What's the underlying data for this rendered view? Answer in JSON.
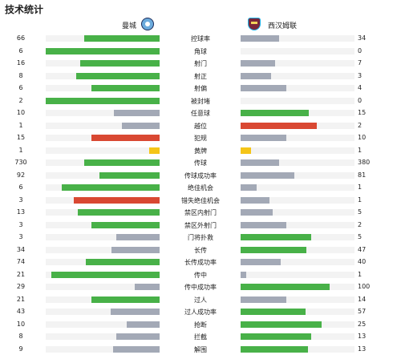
{
  "title": "技术统计",
  "teams": {
    "home": "曼城",
    "away": "西汉姆联",
    "home_badge_icon": "man-city-badge-icon",
    "away_badge_icon": "west-ham-badge-icon"
  },
  "colors": {
    "green": "#48b148",
    "grey": "#a3a9b6",
    "red": "#d94832",
    "yellow": "#f5c518",
    "track": "#f3f3f3"
  },
  "stats": [
    {
      "label": "控球率",
      "home": "66",
      "away": "34",
      "hp": 0.66,
      "ap": 0.34,
      "hc": "green",
      "ac": "grey"
    },
    {
      "label": "角球",
      "home": "6",
      "away": "0",
      "hp": 1.0,
      "ap": 0.0,
      "hc": "green",
      "ac": "grey"
    },
    {
      "label": "射门",
      "home": "16",
      "away": "7",
      "hp": 0.7,
      "ap": 0.3,
      "hc": "green",
      "ac": "grey"
    },
    {
      "label": "射正",
      "home": "8",
      "away": "3",
      "hp": 0.73,
      "ap": 0.27,
      "hc": "green",
      "ac": "grey"
    },
    {
      "label": "射偏",
      "home": "6",
      "away": "4",
      "hp": 0.6,
      "ap": 0.4,
      "hc": "green",
      "ac": "grey"
    },
    {
      "label": "被封堵",
      "home": "2",
      "away": "0",
      "hp": 1.0,
      "ap": 0.0,
      "hc": "green",
      "ac": "grey"
    },
    {
      "label": "任意球",
      "home": "10",
      "away": "15",
      "hp": 0.4,
      "ap": 0.6,
      "hc": "grey",
      "ac": "green"
    },
    {
      "label": "越位",
      "home": "1",
      "away": "2",
      "hp": 0.33,
      "ap": 0.67,
      "hc": "grey",
      "ac": "red"
    },
    {
      "label": "犯规",
      "home": "15",
      "away": "10",
      "hp": 0.6,
      "ap": 0.4,
      "hc": "red",
      "ac": "grey"
    },
    {
      "label": "黄牌",
      "home": "1",
      "away": "1",
      "hp": 0.09,
      "ap": 0.09,
      "hc": "yellow",
      "ac": "yellow"
    },
    {
      "label": "传球",
      "home": "730",
      "away": "380",
      "hp": 0.66,
      "ap": 0.34,
      "hc": "green",
      "ac": "grey"
    },
    {
      "label": "传球成功率",
      "home": "92",
      "away": "81",
      "hp": 0.53,
      "ap": 0.47,
      "hc": "green",
      "ac": "grey"
    },
    {
      "label": "绝佳机会",
      "home": "6",
      "away": "1",
      "hp": 0.86,
      "ap": 0.14,
      "hc": "green",
      "ac": "grey"
    },
    {
      "label": "错失绝佳机会",
      "home": "3",
      "away": "1",
      "hp": 0.75,
      "ap": 0.25,
      "hc": "red",
      "ac": "grey"
    },
    {
      "label": "禁区内射门",
      "home": "13",
      "away": "5",
      "hp": 0.72,
      "ap": 0.28,
      "hc": "green",
      "ac": "grey"
    },
    {
      "label": "禁区外射门",
      "home": "3",
      "away": "2",
      "hp": 0.6,
      "ap": 0.4,
      "hc": "green",
      "ac": "grey"
    },
    {
      "label": "门将扑救",
      "home": "3",
      "away": "5",
      "hp": 0.38,
      "ap": 0.62,
      "hc": "grey",
      "ac": "green"
    },
    {
      "label": "长传",
      "home": "34",
      "away": "47",
      "hp": 0.42,
      "ap": 0.58,
      "hc": "grey",
      "ac": "green"
    },
    {
      "label": "长传成功率",
      "home": "74",
      "away": "40",
      "hp": 0.65,
      "ap": 0.35,
      "hc": "green",
      "ac": "grey"
    },
    {
      "label": "传中",
      "home": "21",
      "away": "1",
      "hp": 0.95,
      "ap": 0.05,
      "hc": "green",
      "ac": "grey"
    },
    {
      "label": "传中成功率",
      "home": "29",
      "away": "100",
      "hp": 0.22,
      "ap": 0.78,
      "hc": "grey",
      "ac": "green"
    },
    {
      "label": "过人",
      "home": "21",
      "away": "14",
      "hp": 0.6,
      "ap": 0.4,
      "hc": "green",
      "ac": "grey"
    },
    {
      "label": "过人成功率",
      "home": "43",
      "away": "57",
      "hp": 0.43,
      "ap": 0.57,
      "hc": "grey",
      "ac": "green"
    },
    {
      "label": "抢断",
      "home": "10",
      "away": "25",
      "hp": 0.29,
      "ap": 0.71,
      "hc": "grey",
      "ac": "green"
    },
    {
      "label": "拦截",
      "home": "8",
      "away": "13",
      "hp": 0.38,
      "ap": 0.62,
      "hc": "grey",
      "ac": "green"
    },
    {
      "label": "解围",
      "home": "9",
      "away": "13",
      "hp": 0.41,
      "ap": 0.59,
      "hc": "grey",
      "ac": "green"
    }
  ]
}
